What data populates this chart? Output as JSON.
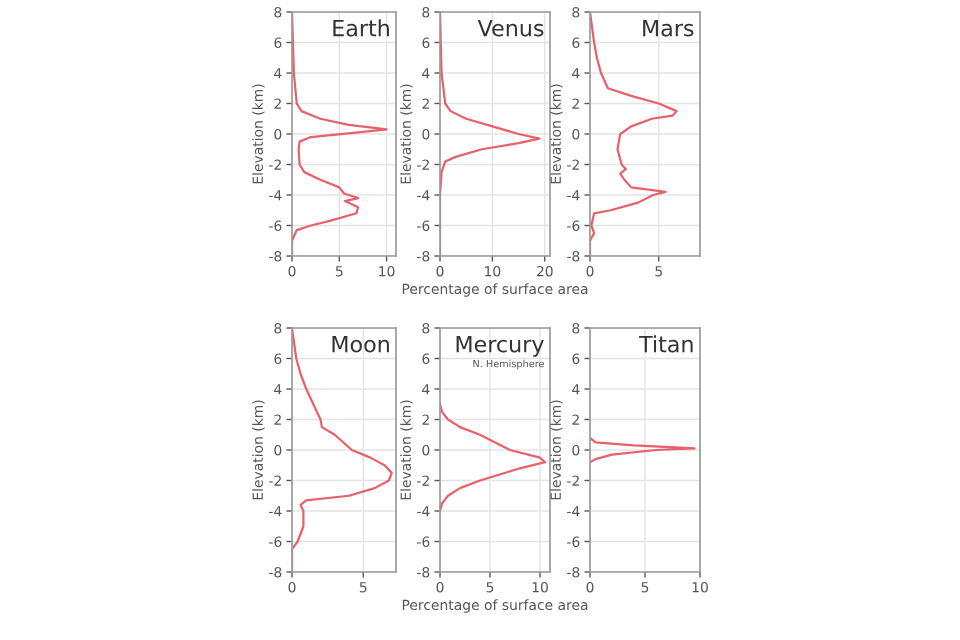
{
  "chart_data": [
    {
      "type": "line",
      "title": "Earth",
      "ylabel": "Elevation (km)",
      "xlim": [
        0,
        11
      ],
      "ylim": [
        -8,
        8
      ],
      "xticks": [
        0,
        5,
        10
      ],
      "yticks": [
        -8,
        -6,
        -4,
        -2,
        0,
        2,
        4,
        6,
        8
      ],
      "grid": true,
      "series": [
        {
          "color": "#e8606a",
          "x": [
            0,
            0.2,
            0.5,
            1,
            3,
            6,
            10,
            7,
            2,
            0.8,
            0.7,
            0.8,
            1.3,
            3,
            5,
            5.5,
            7,
            5.6,
            7,
            6.8,
            4,
            2,
            0.5,
            0,
            0
          ],
          "values": [
            8,
            4,
            2,
            1.5,
            1,
            0.6,
            0.3,
            0.1,
            -0.2,
            -0.5,
            -1,
            -2,
            -2.5,
            -3,
            -3.5,
            -3.9,
            -4.2,
            -4.4,
            -4.8,
            -5.2,
            -5.7,
            -6,
            -6.3,
            -7,
            -8
          ]
        }
      ]
    },
    {
      "type": "line",
      "title": "Venus",
      "ylabel": "Elevation (km)",
      "xlabel": "Percentage of surface area",
      "xlim": [
        0,
        21
      ],
      "ylim": [
        -8,
        8
      ],
      "xticks": [
        0,
        10,
        20
      ],
      "yticks": [
        -8,
        -6,
        -4,
        -2,
        0,
        2,
        4,
        6,
        8
      ],
      "grid": true,
      "series": [
        {
          "color": "#e8606a",
          "x": [
            0,
            0.3,
            1,
            2,
            5,
            10,
            15,
            19,
            15,
            8,
            3,
            1,
            0.3,
            0,
            0
          ],
          "values": [
            8,
            4,
            2,
            1.5,
            1,
            0.5,
            0,
            -0.3,
            -0.6,
            -1,
            -1.5,
            -1.8,
            -2.5,
            -4,
            -8
          ]
        }
      ]
    },
    {
      "type": "line",
      "title": "Mars",
      "ylabel": "Elevation (km)",
      "xlim": [
        0,
        8
      ],
      "ylim": [
        -8,
        8
      ],
      "xticks": [
        0,
        5
      ],
      "yticks": [
        -8,
        -6,
        -4,
        -2,
        0,
        2,
        4,
        6,
        8
      ],
      "grid": true,
      "series": [
        {
          "color": "#e8606a",
          "x": [
            0,
            0.3,
            0.5,
            0.8,
            1.3,
            3,
            5,
            6.3,
            6,
            4.5,
            3,
            2.2,
            2,
            2.3,
            2.6,
            2.2,
            2.5,
            3,
            5.5,
            4.6,
            3.5,
            1.5,
            0.3,
            0.1,
            0.3,
            0,
            0
          ],
          "values": [
            8,
            6,
            5,
            4,
            3,
            2.5,
            2,
            1.5,
            1.2,
            1,
            0.5,
            0,
            -1,
            -2,
            -2.3,
            -2.6,
            -3,
            -3.5,
            -3.8,
            -4,
            -4.5,
            -5,
            -5.2,
            -6,
            -6.5,
            -7,
            -8
          ]
        }
      ]
    },
    {
      "type": "line",
      "title": "Moon",
      "ylabel": "Elevation (km)",
      "xlim": [
        0,
        7.3
      ],
      "ylim": [
        -8,
        8
      ],
      "xticks": [
        0,
        5
      ],
      "yticks": [
        -8,
        -6,
        -4,
        -2,
        0,
        2,
        4,
        6,
        8
      ],
      "grid": true,
      "series": [
        {
          "color": "#e8606a",
          "x": [
            0,
            0.3,
            0.6,
            1,
            1.5,
            2,
            2.1,
            3,
            4.2,
            5.5,
            6.5,
            7,
            6.8,
            5.8,
            4,
            1,
            0.6,
            0.8,
            0.8,
            0.4,
            0,
            0
          ],
          "values": [
            8,
            6,
            5,
            4,
            3,
            2,
            1.5,
            1,
            0,
            -0.5,
            -1,
            -1.5,
            -2,
            -2.5,
            -3,
            -3.3,
            -3.6,
            -4,
            -5,
            -6,
            -6.5,
            -8
          ]
        }
      ]
    },
    {
      "type": "line",
      "title": "Mercury",
      "subtitle": "N. Hemisphere",
      "ylabel": "Elevation (km)",
      "xlabel": "Percentage of surface area",
      "xlim": [
        0,
        11
      ],
      "ylim": [
        -8,
        8
      ],
      "xticks": [
        0,
        5,
        10
      ],
      "yticks": [
        -8,
        -6,
        -4,
        -2,
        0,
        2,
        4,
        6,
        8
      ],
      "grid": true,
      "series": [
        {
          "color": "#e8606a",
          "x": [
            0,
            0.2,
            0.8,
            2,
            4,
            7,
            10,
            10.5,
            8,
            4,
            2,
            0.8,
            0.2,
            0
          ],
          "values": [
            3,
            2.5,
            2,
            1.5,
            1,
            0,
            -0.5,
            -0.8,
            -1.2,
            -2,
            -2.5,
            -3,
            -3.5,
            -4
          ]
        }
      ]
    },
    {
      "type": "line",
      "title": "Titan",
      "ylabel": "Elevation (km)",
      "xlim": [
        0,
        10
      ],
      "ylim": [
        -8,
        8
      ],
      "xticks": [
        0,
        5,
        10
      ],
      "yticks": [
        -8,
        -6,
        -4,
        -2,
        0,
        2,
        4,
        6,
        8
      ],
      "grid": true,
      "series": [
        {
          "color": "#e8606a",
          "x": [
            0,
            0.5,
            4,
            9.5,
            6,
            2,
            0.5,
            0
          ],
          "values": [
            0.8,
            0.5,
            0.3,
            0.1,
            0,
            -0.3,
            -0.6,
            -0.8
          ]
        }
      ]
    }
  ]
}
